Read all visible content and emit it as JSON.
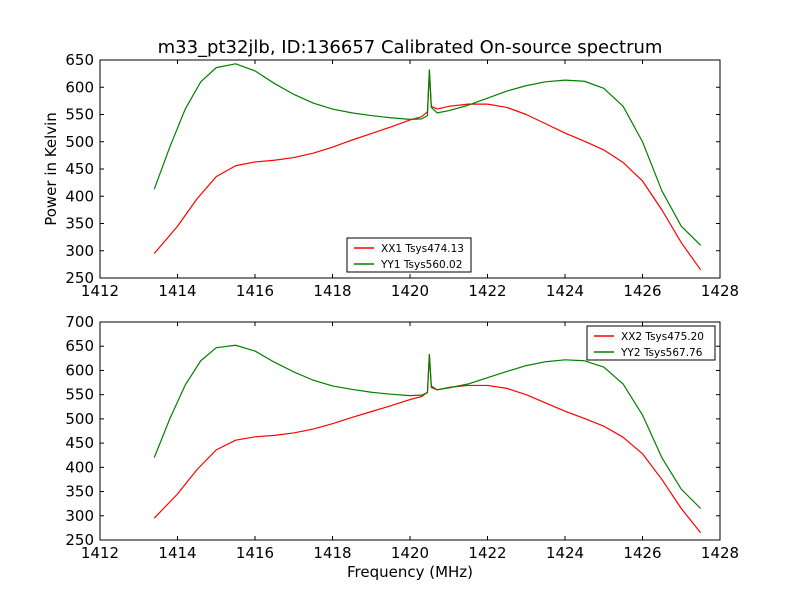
{
  "title": "m33_pt32jlb, ID:136657 Calibrated On-source spectrum",
  "colors": {
    "xx": "#ff0000",
    "yy": "#008000",
    "axes": "#000000"
  },
  "chart_data": [
    {
      "type": "line",
      "ylabel": "Power in Kelvin",
      "xlabel": "",
      "xlim": [
        1412,
        1428
      ],
      "ylim": [
        250,
        650
      ],
      "xticks": [
        1412,
        1414,
        1416,
        1418,
        1420,
        1422,
        1424,
        1426,
        1428
      ],
      "yticks": [
        250,
        300,
        350,
        400,
        450,
        500,
        550,
        600,
        650
      ],
      "legend_position": "lower-center",
      "series": [
        {
          "name": "XX1 Tsys474.13",
          "color": "#ff0000",
          "x": [
            1413.4,
            1414.0,
            1414.5,
            1415.0,
            1415.5,
            1416.0,
            1416.5,
            1417.0,
            1417.5,
            1418.0,
            1418.5,
            1419.0,
            1419.5,
            1420.0,
            1420.3,
            1420.45,
            1420.5,
            1420.55,
            1420.7,
            1421.0,
            1421.5,
            1422.0,
            1422.5,
            1423.0,
            1423.5,
            1424.0,
            1424.5,
            1425.0,
            1425.5,
            1426.0,
            1426.5,
            1427.0,
            1427.5
          ],
          "y": [
            295,
            345,
            395,
            436,
            456,
            463,
            466,
            471,
            479,
            490,
            503,
            515,
            527,
            540,
            546,
            555,
            630,
            565,
            560,
            565,
            569,
            569,
            563,
            550,
            533,
            516,
            501,
            485,
            462,
            428,
            375,
            315,
            265
          ]
        },
        {
          "name": "YY1 Tsys560.02",
          "color": "#008000",
          "x": [
            1413.4,
            1413.8,
            1414.2,
            1414.6,
            1415.0,
            1415.5,
            1416.0,
            1416.5,
            1417.0,
            1417.5,
            1418.0,
            1418.5,
            1419.0,
            1419.5,
            1420.0,
            1420.3,
            1420.45,
            1420.5,
            1420.55,
            1420.7,
            1421.0,
            1421.5,
            1422.0,
            1422.5,
            1423.0,
            1423.5,
            1424.0,
            1424.5,
            1425.0,
            1425.5,
            1426.0,
            1426.5,
            1427.0,
            1427.5
          ],
          "y": [
            413,
            490,
            560,
            610,
            636,
            643,
            630,
            607,
            587,
            571,
            560,
            553,
            548,
            544,
            541,
            542,
            548,
            632,
            563,
            553,
            557,
            567,
            580,
            593,
            603,
            610,
            613,
            611,
            598,
            565,
            500,
            410,
            345,
            310
          ]
        }
      ]
    },
    {
      "type": "line",
      "ylabel": "",
      "xlabel": "Frequency (MHz)",
      "xlim": [
        1412,
        1428
      ],
      "ylim": [
        250,
        700
      ],
      "xticks": [
        1412,
        1414,
        1416,
        1418,
        1420,
        1422,
        1424,
        1426,
        1428
      ],
      "yticks": [
        250,
        300,
        350,
        400,
        450,
        500,
        550,
        600,
        650,
        700
      ],
      "legend_position": "upper-right",
      "series": [
        {
          "name": "XX2 Tsys475.20",
          "color": "#ff0000",
          "x": [
            1413.4,
            1414.0,
            1414.5,
            1415.0,
            1415.5,
            1416.0,
            1416.5,
            1417.0,
            1417.5,
            1418.0,
            1418.5,
            1419.0,
            1419.5,
            1420.0,
            1420.3,
            1420.45,
            1420.5,
            1420.55,
            1420.7,
            1421.0,
            1421.5,
            1422.0,
            1422.5,
            1423.0,
            1423.5,
            1424.0,
            1424.5,
            1425.0,
            1425.5,
            1426.0,
            1426.5,
            1427.0,
            1427.5
          ],
          "y": [
            295,
            345,
            395,
            436,
            456,
            463,
            466,
            471,
            479,
            490,
            503,
            515,
            527,
            540,
            546,
            555,
            633,
            565,
            560,
            565,
            569,
            569,
            563,
            550,
            533,
            516,
            501,
            485,
            462,
            428,
            375,
            315,
            265
          ]
        },
        {
          "name": "YY2 Tsys567.76",
          "color": "#008000",
          "x": [
            1413.4,
            1413.8,
            1414.2,
            1414.6,
            1415.0,
            1415.5,
            1416.0,
            1416.5,
            1417.0,
            1417.5,
            1418.0,
            1418.5,
            1419.0,
            1419.5,
            1420.0,
            1420.3,
            1420.45,
            1420.5,
            1420.55,
            1420.7,
            1421.0,
            1421.5,
            1422.0,
            1422.5,
            1423.0,
            1423.5,
            1424.0,
            1424.5,
            1425.0,
            1425.5,
            1426.0,
            1426.5,
            1427.0,
            1427.5
          ],
          "y": [
            420,
            500,
            570,
            620,
            647,
            652,
            640,
            617,
            597,
            580,
            568,
            561,
            555,
            551,
            548,
            549,
            554,
            633,
            568,
            560,
            564,
            572,
            585,
            598,
            610,
            618,
            622,
            620,
            607,
            572,
            508,
            420,
            355,
            315
          ]
        }
      ]
    }
  ]
}
